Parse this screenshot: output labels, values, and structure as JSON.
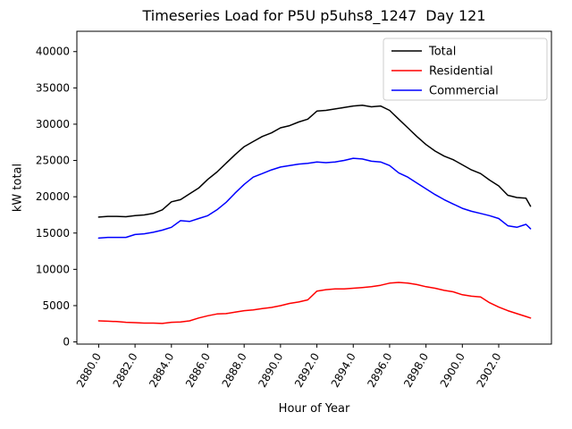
{
  "chart_data": {
    "type": "line",
    "title": "Timeseries Load for P5U p5uhs8_1247  Day 121",
    "xlabel": "Hour of Year",
    "ylabel": "kW total",
    "xlim": [
      2878.8,
      2904.9
    ],
    "ylim": [
      -300,
      42800
    ],
    "grid": false,
    "legend_position": "upper right",
    "xticks": [
      2880,
      2882,
      2884,
      2886,
      2888,
      2890,
      2892,
      2894,
      2896,
      2898,
      2900,
      2902
    ],
    "xtick_labels": [
      "2880.0",
      "2882.0",
      "2884.0",
      "2886.0",
      "2888.0",
      "2890.0",
      "2892.0",
      "2894.0",
      "2896.0",
      "2898.0",
      "2900.0",
      "2902.0"
    ],
    "yticks": [
      0,
      5000,
      10000,
      15000,
      20000,
      25000,
      30000,
      35000,
      40000
    ],
    "ytick_labels": [
      "0",
      "5000",
      "10000",
      "15000",
      "20000",
      "25000",
      "30000",
      "35000",
      "40000"
    ],
    "x": [
      2880,
      2880.5,
      2881,
      2881.5,
      2882,
      2882.5,
      2883,
      2883.5,
      2884,
      2884.5,
      2885,
      2885.5,
      2886,
      2886.5,
      2887,
      2887.5,
      2888,
      2888.5,
      2889,
      2889.5,
      2890,
      2890.5,
      2891,
      2891.5,
      2892,
      2892.5,
      2893,
      2893.5,
      2894,
      2894.5,
      2895,
      2895.5,
      2896,
      2896.5,
      2897,
      2897.5,
      2898,
      2898.5,
      2899,
      2899.5,
      2900,
      2900.5,
      2901,
      2901.5,
      2902,
      2902.5,
      2903,
      2903.5,
      2903.75
    ],
    "series": [
      {
        "name": "Total",
        "color": "#000000",
        "values": [
          17200,
          17300,
          17300,
          17250,
          17400,
          17500,
          17700,
          18200,
          19300,
          19600,
          20400,
          21200,
          22400,
          23400,
          24600,
          25800,
          26900,
          27600,
          28300,
          28800,
          29500,
          29800,
          30300,
          30700,
          31800,
          31900,
          32100,
          32300,
          32500,
          32600,
          32400,
          32500,
          31900,
          30700,
          29500,
          28300,
          27200,
          26300,
          25600,
          25100,
          24400,
          23700,
          23200,
          22300,
          21500,
          20200,
          19900,
          19800,
          18700
        ]
      },
      {
        "name": "Residential",
        "color": "#ff0000",
        "values": [
          2900,
          2850,
          2800,
          2700,
          2650,
          2600,
          2600,
          2550,
          2700,
          2750,
          2900,
          3300,
          3600,
          3850,
          3900,
          4100,
          4300,
          4400,
          4600,
          4750,
          5000,
          5300,
          5500,
          5800,
          7000,
          7200,
          7300,
          7300,
          7400,
          7500,
          7600,
          7800,
          8100,
          8200,
          8100,
          7900,
          7600,
          7400,
          7100,
          6900,
          6500,
          6300,
          6200,
          5400,
          4800,
          4300,
          3900,
          3500,
          3300
        ]
      },
      {
        "name": "Commercial",
        "color": "#0000ff",
        "values": [
          14300,
          14400,
          14400,
          14400,
          14800,
          14900,
          15100,
          15400,
          15800,
          16700,
          16600,
          17000,
          17400,
          18200,
          19200,
          20500,
          21700,
          22700,
          23200,
          23700,
          24100,
          24300,
          24500,
          24600,
          24800,
          24700,
          24800,
          25000,
          25300,
          25200,
          24900,
          24800,
          24300,
          23300,
          22700,
          21900,
          21100,
          20300,
          19600,
          19000,
          18400,
          18000,
          17700,
          17400,
          17000,
          16000,
          15800,
          16200,
          15600
        ]
      }
    ]
  }
}
